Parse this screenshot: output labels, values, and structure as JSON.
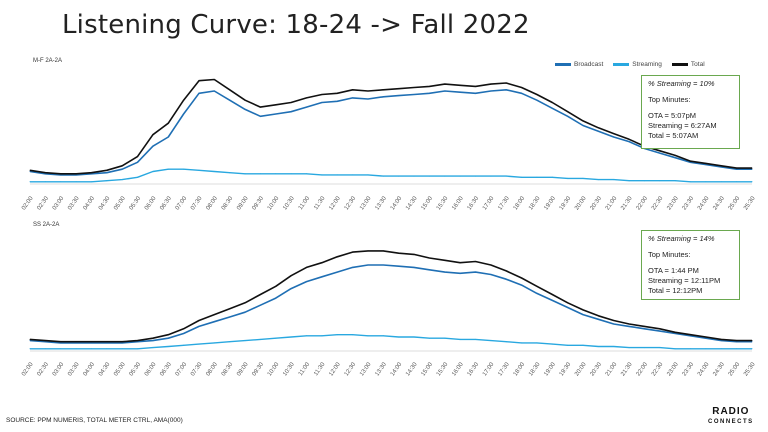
{
  "title": "Listening Curve: 18-24 -> Fall 2022",
  "source": "SOURCE: PPM NUMERIS, TOTAL METER CTRL, AMA(000)",
  "logo": {
    "line1": "RADIO",
    "line2": "CONNECTS"
  },
  "colors": {
    "broadcast": "#1f6fb4",
    "streaming": "#29a8e0",
    "total": "#111111",
    "box_border": "#6aa84f"
  },
  "chart_data": [
    {
      "type": "line",
      "panel_label": "M-F 2A-2A",
      "x_ticks": [
        "02:00",
        "02:30",
        "03:00",
        "03:30",
        "04:00",
        "04:30",
        "05:00",
        "05:30",
        "06:00",
        "06:30",
        "07:00",
        "07:30",
        "08:00",
        "08:30",
        "09:00",
        "09:30",
        "10:00",
        "10:30",
        "11:00",
        "11:30",
        "12:00",
        "12:30",
        "13:00",
        "13:30",
        "14:00",
        "14:30",
        "15:00",
        "15:30",
        "16:00",
        "16:30",
        "17:00",
        "17:30",
        "18:00",
        "18:30",
        "19:00",
        "19:30",
        "20:00",
        "20:30",
        "21:00",
        "21:30",
        "22:00",
        "22:30",
        "23:00",
        "23:30",
        "24:00",
        "24:30",
        "25:00",
        "25:30"
      ],
      "legend": [
        "Broadcast",
        "Streaming",
        "Total"
      ],
      "series": [
        {
          "name": "Broadcast",
          "values": [
            10,
            8,
            7,
            7,
            8,
            9,
            12,
            18,
            32,
            40,
            60,
            78,
            80,
            72,
            64,
            58,
            60,
            62,
            66,
            70,
            71,
            74,
            73,
            75,
            76,
            77,
            78,
            80,
            79,
            78,
            80,
            81,
            78,
            72,
            65,
            58,
            50,
            45,
            40,
            36,
            30,
            26,
            22,
            18,
            16,
            14,
            12,
            12
          ]
        },
        {
          "name": "Streaming",
          "values": [
            1,
            1,
            1,
            1,
            1,
            2,
            3,
            5,
            10,
            12,
            12,
            11,
            10,
            9,
            8,
            8,
            8,
            8,
            8,
            7,
            7,
            7,
            7,
            6,
            6,
            6,
            6,
            6,
            6,
            6,
            6,
            6,
            5,
            5,
            5,
            4,
            4,
            3,
            3,
            2,
            2,
            2,
            2,
            1,
            1,
            1,
            1,
            1
          ]
        },
        {
          "name": "Total",
          "values": [
            11,
            9,
            8,
            8,
            9,
            11,
            15,
            23,
            42,
            52,
            72,
            89,
            90,
            81,
            72,
            66,
            68,
            70,
            74,
            77,
            78,
            81,
            80,
            81,
            82,
            83,
            84,
            86,
            85,
            84,
            86,
            87,
            83,
            77,
            70,
            62,
            54,
            48,
            43,
            38,
            32,
            28,
            24,
            19,
            17,
            15,
            13,
            13
          ]
        }
      ],
      "ylim": [
        0,
        100
      ],
      "annotation": {
        "headline": "% Streaming  =  10%",
        "subtitle": "Top Minutes:",
        "lines": [
          "OTA = 5:07pM",
          "Streaming = 6:27AM",
          "Total = 5:07AM"
        ]
      }
    },
    {
      "type": "line",
      "panel_label": "SS 2A-2A",
      "x_ticks": [
        "02:00",
        "02:30",
        "03:00",
        "03:30",
        "04:00",
        "04:30",
        "05:00",
        "05:30",
        "06:00",
        "06:30",
        "07:00",
        "07:30",
        "08:00",
        "08:30",
        "09:00",
        "09:30",
        "10:00",
        "10:30",
        "11:00",
        "11:30",
        "12:00",
        "12:30",
        "13:00",
        "13:30",
        "14:00",
        "14:30",
        "15:00",
        "15:30",
        "16:00",
        "16:30",
        "17:00",
        "17:30",
        "18:00",
        "18:30",
        "19:00",
        "19:30",
        "20:00",
        "20:30",
        "21:00",
        "21:30",
        "22:00",
        "22:30",
        "23:00",
        "23:30",
        "24:00",
        "24:30",
        "25:00",
        "25:30"
      ],
      "series": [
        {
          "name": "Broadcast",
          "values": [
            8,
            7,
            6,
            6,
            6,
            6,
            6,
            7,
            8,
            10,
            14,
            20,
            24,
            28,
            32,
            38,
            44,
            52,
            58,
            62,
            66,
            70,
            72,
            72,
            71,
            70,
            68,
            66,
            65,
            66,
            64,
            60,
            55,
            48,
            42,
            36,
            30,
            26,
            22,
            20,
            18,
            16,
            14,
            12,
            10,
            8,
            7,
            7
          ]
        },
        {
          "name": "Streaming",
          "values": [
            1,
            1,
            1,
            1,
            1,
            1,
            1,
            1,
            2,
            3,
            4,
            5,
            6,
            7,
            8,
            9,
            10,
            11,
            12,
            12,
            13,
            13,
            12,
            12,
            11,
            11,
            10,
            10,
            9,
            9,
            8,
            7,
            6,
            6,
            5,
            4,
            4,
            3,
            3,
            2,
            2,
            2,
            1,
            1,
            1,
            1,
            1,
            1
          ]
        },
        {
          "name": "Total",
          "values": [
            9,
            8,
            7,
            7,
            7,
            7,
            7,
            8,
            10,
            13,
            18,
            25,
            30,
            35,
            40,
            47,
            54,
            63,
            70,
            74,
            79,
            83,
            84,
            84,
            82,
            81,
            78,
            76,
            74,
            75,
            72,
            67,
            61,
            54,
            47,
            40,
            34,
            29,
            25,
            22,
            20,
            18,
            15,
            13,
            11,
            9,
            8,
            8
          ]
        }
      ],
      "ylim": [
        0,
        100
      ],
      "annotation": {
        "headline": "% Streaming = 14%",
        "subtitle": "Top Minutes:",
        "lines": [
          "OTA = 1:44 PM",
          "Streaming = 12:11PM",
          "Total = 12:12PM"
        ]
      }
    }
  ]
}
